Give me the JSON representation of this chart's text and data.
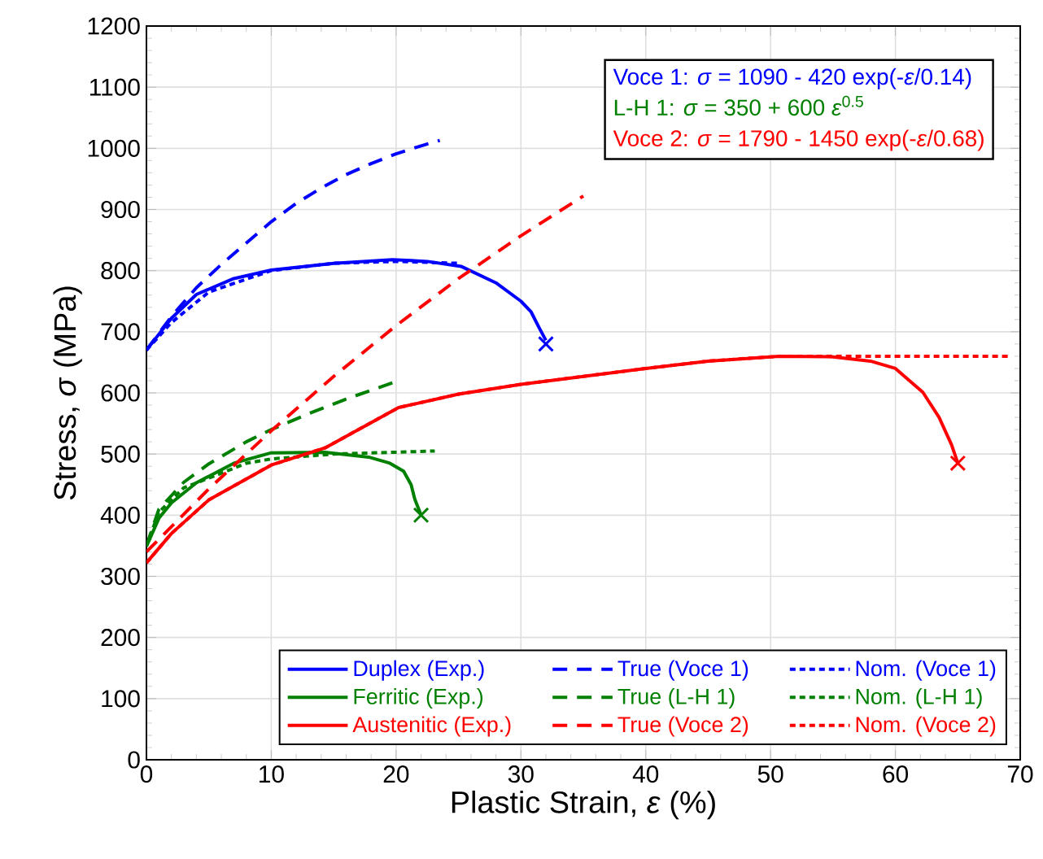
{
  "chart_data": {
    "type": "line",
    "xlabel": "Plastic Strain, *ε* (%)",
    "ylabel": "Stress, *σ* (MPa)",
    "annotations": [
      "Voce 1: *σ* = 1090 - 420 exp(-*ε*/0.14)",
      "L-H 1: *σ* = 350 + 600 *ε*$^{0.5}$",
      "Voce 2: *σ* = 1790 - 1450 exp(-*ε*/0.68)"
    ],
    "xlim": [
      0,
      70
    ],
    "ylim": [
      0,
      1200
    ],
    "xticks": [
      0,
      10,
      20,
      30,
      40,
      50,
      60,
      70
    ],
    "yticks": [
      0,
      100,
      200,
      300,
      400,
      500,
      600,
      700,
      800,
      900,
      1000,
      1100,
      1200
    ],
    "grid": true,
    "legend": "bottom",
    "series": [
      {
        "name": "Duplex (Exp.)",
        "color": "#0000ff",
        "line_style": "solid",
        "x": [
          0,
          2,
          4,
          7,
          10,
          15,
          19.7,
          22.5,
          25.2,
          28,
          30,
          30.8,
          31.5,
          32
        ],
        "values": [
          670,
          722,
          761,
          787,
          801,
          812,
          818,
          815,
          807,
          780,
          750,
          733,
          705,
          686
        ]
      },
      {
        "name": "True (Voce 1)",
        "color": "#0000ff",
        "line_style": "dashed",
        "x": [
          0,
          2,
          4,
          6,
          8,
          10,
          12,
          14,
          16,
          18,
          20,
          22,
          23.5
        ],
        "values": [
          670,
          725,
          772,
          810,
          845,
          880,
          910,
          935,
          957,
          975,
          991,
          1004,
          1013
        ]
      },
      {
        "name": "Nom. (Voce 1)",
        "color": "#0000ff",
        "line_style": "dotted",
        "x": [
          0,
          2,
          5,
          10,
          15,
          20,
          25
        ],
        "values": [
          670,
          715,
          765,
          800,
          812,
          815,
          812
        ]
      },
      {
        "name": "Ferritic (Exp.)",
        "color": "#008000",
        "line_style": "solid",
        "x": [
          0,
          1,
          2,
          4,
          7,
          10,
          14.3,
          17.8,
          19.5,
          20.6,
          21.2,
          21.5,
          22
        ],
        "values": [
          349,
          395,
          420,
          453,
          485,
          502,
          503,
          495,
          485,
          472,
          450,
          426,
          400
        ]
      },
      {
        "name": "True (L-H 1)",
        "color": "#008000",
        "line_style": "dashed",
        "x": [
          0,
          1,
          3,
          5,
          8,
          10,
          13,
          16,
          20.2
        ],
        "values": [
          350,
          410,
          454,
          484,
          520,
          540,
          566,
          590,
          620
        ]
      },
      {
        "name": "Nom. (L-H 1)",
        "color": "#008000",
        "line_style": "dotted",
        "x": [
          0,
          1,
          3,
          5.3,
          8,
          10,
          15,
          20,
          23.1
        ],
        "values": [
          350,
          405,
          445,
          463,
          485,
          492,
          500,
          503,
          505
        ]
      },
      {
        "name": "Austenitic (Exp.)",
        "color": "#ff0000",
        "line_style": "solid",
        "x": [
          0,
          2,
          5,
          10,
          14.3,
          20.2,
          25,
          30,
          35,
          40,
          45,
          50.7,
          55,
          58,
          60,
          62.2,
          63.5,
          64.5,
          65
        ],
        "values": [
          322,
          370,
          425,
          482,
          510,
          576,
          598,
          614,
          627,
          640,
          652,
          660,
          659,
          652,
          640,
          601,
          560,
          515,
          485
        ]
      },
      {
        "name": "True (Voce 2)",
        "color": "#ff0000",
        "line_style": "dashed",
        "x": [
          0,
          5,
          10,
          15,
          20,
          25,
          30,
          35
        ],
        "values": [
          340,
          443,
          538,
          627,
          710,
          787,
          857,
          922
        ]
      },
      {
        "name": "Nom. (Voce 2)",
        "color": "#ff0000",
        "line_style": "dotted",
        "x": [
          0,
          2,
          5,
          10,
          14.3,
          20.2,
          25,
          30,
          35,
          40,
          45,
          50.7,
          55,
          60,
          65,
          69
        ],
        "values": [
          322,
          370,
          425,
          482,
          510,
          576,
          598,
          614,
          627,
          640,
          652,
          660,
          660,
          660,
          660,
          660
        ]
      },
      {
        "type": "scatter",
        "marker": "cross",
        "color": "#0000ff",
        "x": [
          32
        ],
        "values": [
          680
        ]
      },
      {
        "type": "scatter",
        "marker": "cross",
        "color": "#008000",
        "x": [
          22
        ],
        "values": [
          400
        ]
      },
      {
        "type": "scatter",
        "marker": "cross",
        "color": "#ff0000",
        "x": [
          65
        ],
        "values": [
          485
        ]
      }
    ]
  }
}
